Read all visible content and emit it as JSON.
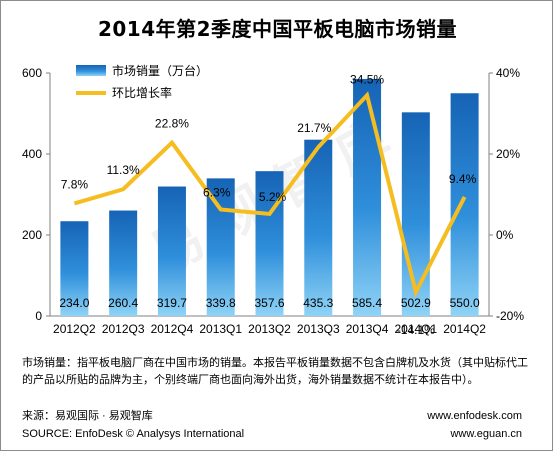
{
  "chart_data": {
    "type": "bar",
    "title": "2014年第2季度中国平板电脑市场销量",
    "categories": [
      "2012Q2",
      "2012Q3",
      "2012Q4",
      "2013Q1",
      "2013Q2",
      "2013Q3",
      "2013Q4",
      "2014Q1",
      "2014Q2"
    ],
    "series": [
      {
        "name": "市场销量（万台）",
        "type": "bar",
        "axis": "left",
        "values": [
          234.0,
          260.4,
          319.7,
          339.8,
          357.6,
          435.3,
          585.4,
          502.9,
          550.0
        ],
        "labels": [
          "234.0",
          "260.4",
          "319.7",
          "339.8",
          "357.6",
          "435.3",
          "585.4",
          "502.9",
          "550.0"
        ],
        "color": "#1f6fc0"
      },
      {
        "name": "环比增长率",
        "type": "line",
        "axis": "right",
        "values": [
          7.8,
          11.3,
          22.8,
          6.3,
          5.2,
          21.7,
          34.5,
          -14.1,
          9.4
        ],
        "labels": [
          "7.8%",
          "11.3%",
          "22.8%",
          "6.3%",
          "5.2%",
          "21.7%",
          "34.5%",
          "-14.1%",
          "9.4%"
        ],
        "color": "#f5bd1f"
      }
    ],
    "ylim_left": [
      0,
      600
    ],
    "yticks_left": [
      "0",
      "200",
      "400",
      "600"
    ],
    "ylim_right": [
      -20,
      40
    ],
    "yticks_right": [
      "-20%",
      "0%",
      "20%",
      "40%"
    ],
    "legend_position": "top-left",
    "grid": false
  },
  "watermark": "易观智库",
  "note": "市场销量：指平板电脑厂商在中国市场的销量。本报告平板销量数据不包含白牌机及水货（其中贴标代工的产品以所贴的品牌为主，个别终端厂商也面向海外出货，海外销量数据不统计在本报告中）。",
  "footer": {
    "source_cn": "来源：易观国际 · 易观智库",
    "source_en": "SOURCE: EnfoDesk © Analysys International",
    "url1": "www.enfodesk.com",
    "url2": "www.eguan.cn"
  }
}
